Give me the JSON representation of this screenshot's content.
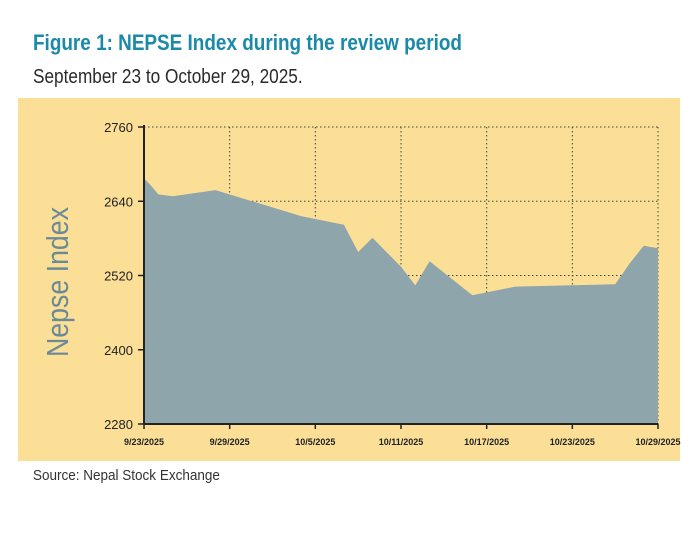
{
  "header": {
    "title": "Figure 1: NEPSE Index during the review period",
    "subtitle": "September 23 to October 29, 2025."
  },
  "footer": {
    "source": "Source: Nepal Stock Exchange"
  },
  "colors": {
    "title": "#1a8aa8",
    "panel_background": "#fbdf97",
    "area_fill": "#8ea5ac",
    "ylabel": "#6c8a96",
    "grid": "#444444"
  },
  "chart_data": {
    "type": "area",
    "title": "Figure 1: NEPSE Index during the review period",
    "subtitle": "September 23 to October 29, 2025.",
    "xlabel": "",
    "ylabel": "Nepse Index",
    "ylim": [
      2280,
      2760
    ],
    "yticks": [
      2280,
      2400,
      2520,
      2640,
      2760
    ],
    "ytick_labels": [
      "2280",
      "2400",
      "2520",
      "2640",
      "2760"
    ],
    "xlim": [
      0,
      36
    ],
    "xticks": [
      0,
      6,
      12,
      18,
      24,
      30,
      36
    ],
    "xtick_labels": [
      "9/23/2025",
      "9/29/2025",
      "10/5/2025",
      "10/11/2025",
      "10/17/2025",
      "10/23/2025",
      "10/29/2025"
    ],
    "grid": true,
    "grid_style": "dotted",
    "series": [
      {
        "name": "NEPSE Index",
        "x": [
          0,
          0.5,
          1,
          2,
          5,
          11,
          14,
          15,
          16,
          18,
          19,
          20,
          23,
          26,
          33,
          34,
          35,
          36
        ],
        "values": [
          2677,
          2665,
          2651,
          2648,
          2658,
          2616,
          2602,
          2558,
          2581,
          2534,
          2504,
          2543,
          2488,
          2502,
          2506,
          2539,
          2568,
          2564
        ]
      }
    ]
  }
}
